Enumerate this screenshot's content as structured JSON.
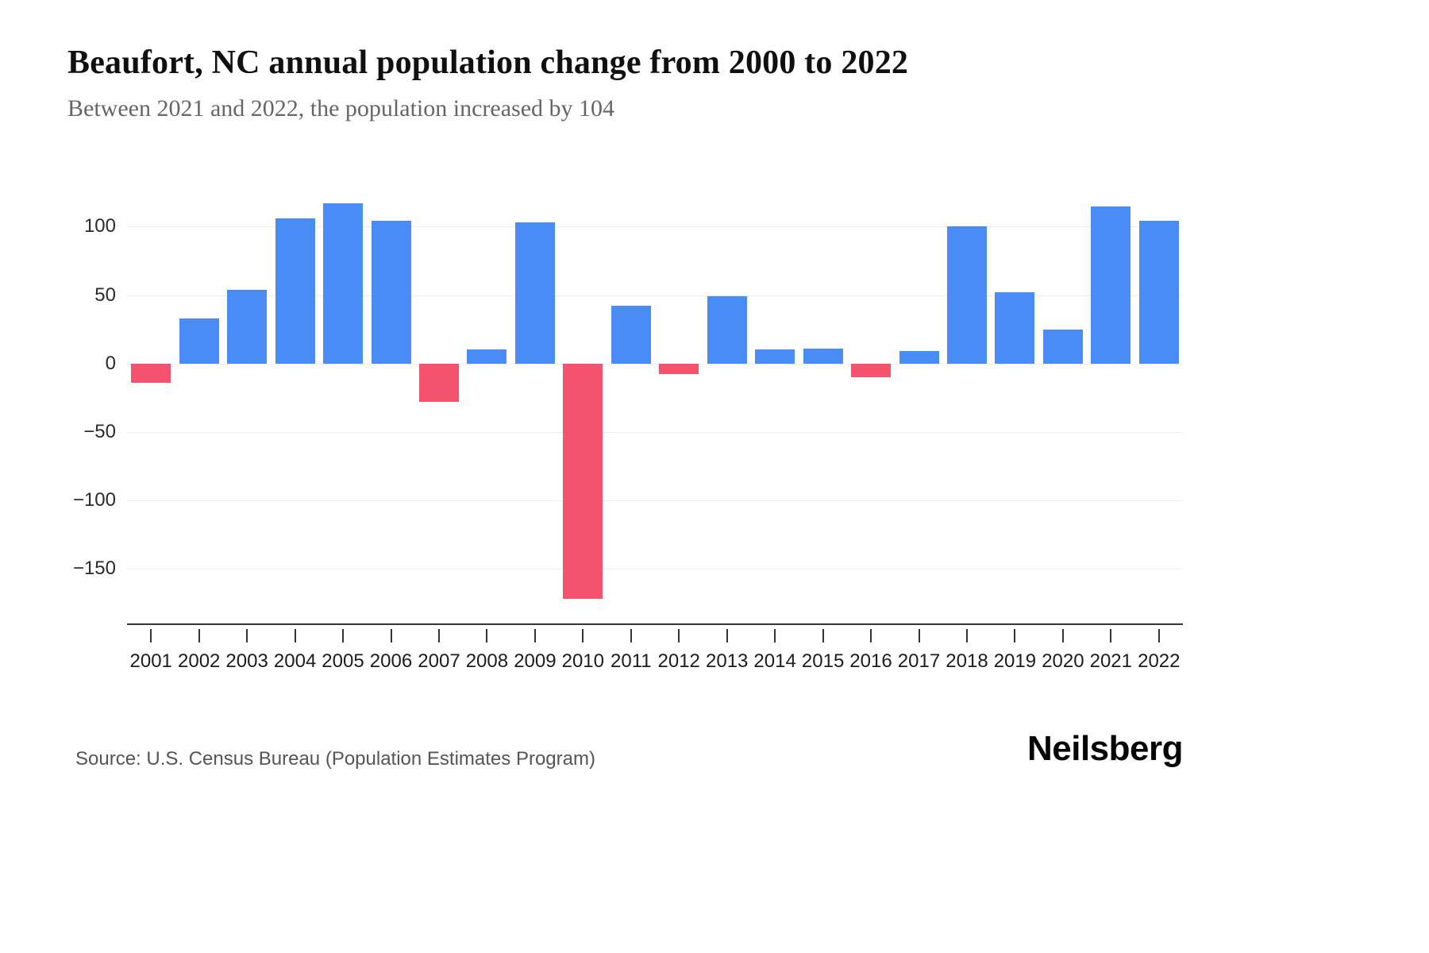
{
  "page": {
    "title": "Beaufort, NC annual population change from 2000 to 2022",
    "subtitle": "Between 2021 and 2022, the population increased by 104",
    "source": "Source: U.S. Census Bureau (Population Estimates Program)",
    "brand": "Neilsberg"
  },
  "chart_data": {
    "type": "bar",
    "title": "Beaufort, NC annual population change from 2000 to 2022",
    "subtitle": "Between 2021 and 2022, the population increased by 104",
    "xlabel": "",
    "ylabel": "",
    "categories": [
      "2001",
      "2002",
      "2003",
      "2004",
      "2005",
      "2006",
      "2007",
      "2008",
      "2009",
      "2010",
      "2011",
      "2012",
      "2013",
      "2014",
      "2015",
      "2016",
      "2017",
      "2018",
      "2019",
      "2020",
      "2021",
      "2022"
    ],
    "values": [
      -14,
      33,
      54,
      106,
      117,
      104,
      -28,
      10,
      103,
      -172,
      42,
      -8,
      49,
      10,
      11,
      -10,
      9,
      100,
      52,
      25,
      115,
      104
    ],
    "y_ticks": [
      100,
      50,
      0,
      -50,
      -100,
      -150
    ],
    "ylim": [
      -190,
      135
    ],
    "grid": true,
    "legend": "none",
    "positive_color": "#4a8cf5",
    "negative_color": "#f4536e",
    "gridline_color": "#ededed",
    "axis_color": "#333333"
  }
}
